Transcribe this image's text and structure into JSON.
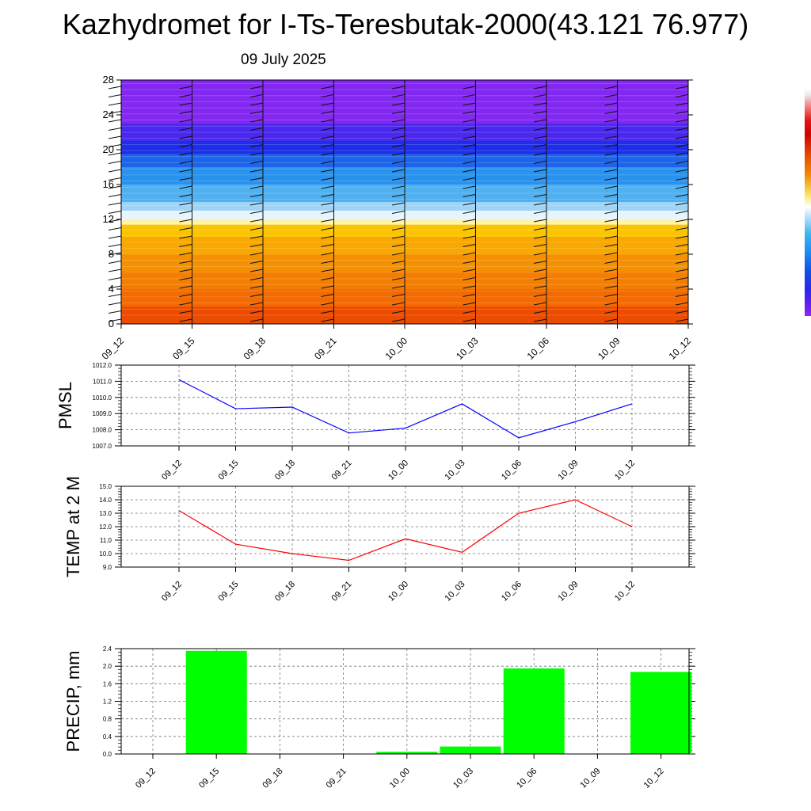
{
  "header": {
    "title": "Kazhydromet for I-Ts-Teresbutak-2000(43.121 76.977)",
    "date": "09 July 2025"
  },
  "chart_data": [
    {
      "type": "heatmap",
      "name": "height-time cross-section",
      "x": [
        "09_12",
        "09_15",
        "09_18",
        "09_21",
        "10_00",
        "10_03",
        "10_06",
        "10_09",
        "10_12"
      ],
      "y_ticks": [
        0,
        4,
        8,
        12,
        16,
        20,
        24,
        28
      ],
      "ylim": [
        0,
        28
      ],
      "colorscale": [
        "#8c28f0",
        "#2828f0",
        "#1e8cf0",
        "#ffffff",
        "#fbe66e",
        "#f08c00",
        "#e65000",
        "#d40000"
      ],
      "bands": [
        {
          "from": 0,
          "to": 2,
          "color": "#ec4c00"
        },
        {
          "from": 2,
          "to": 4,
          "color": "#f26a00"
        },
        {
          "from": 4,
          "to": 6,
          "color": "#f57e00"
        },
        {
          "from": 6,
          "to": 8,
          "color": "#f59000"
        },
        {
          "from": 8,
          "to": 10,
          "color": "#f8a800"
        },
        {
          "from": 10,
          "to": 11.4,
          "color": "#fbc400"
        },
        {
          "from": 11.4,
          "to": 12,
          "color": "#fff3a8"
        },
        {
          "from": 12,
          "to": 13,
          "color": "#e8f4fb"
        },
        {
          "from": 13,
          "to": 14,
          "color": "#a0d4f6"
        },
        {
          "from": 14,
          "to": 16,
          "color": "#50b0f0"
        },
        {
          "from": 16,
          "to": 18,
          "color": "#2892ee"
        },
        {
          "from": 18,
          "to": 19.5,
          "color": "#1c64ea"
        },
        {
          "from": 19.5,
          "to": 21,
          "color": "#1e2ee8"
        },
        {
          "from": 21,
          "to": 23,
          "color": "#4a28ef"
        },
        {
          "from": 23,
          "to": 28,
          "color": "#8228f0"
        }
      ],
      "wind_barbs": true
    },
    {
      "type": "line",
      "name": "PMSL",
      "ylabel": "PMSL",
      "categories": [
        "09_12",
        "09_15",
        "09_18",
        "09_21",
        "10_00",
        "10_03",
        "10_06",
        "10_09",
        "10_12"
      ],
      "values": [
        1011.1,
        1009.3,
        1009.4,
        1007.8,
        1008.1,
        1009.6,
        1007.5,
        1008.5,
        1009.6
      ],
      "ylim": [
        1007.0,
        1012.0
      ],
      "y_ticks": [
        "1007.0",
        "1008.0",
        "1009.0",
        "1010.0",
        "1011.0",
        "1012.0"
      ],
      "color": "#0000ff",
      "grid": true
    },
    {
      "type": "line",
      "name": "TEMP at 2 M",
      "ylabel": "TEMP at 2 M",
      "categories": [
        "09_12",
        "09_15",
        "09_18",
        "09_21",
        "10_00",
        "10_03",
        "10_06",
        "10_09",
        "10_12"
      ],
      "values": [
        13.2,
        10.7,
        10.0,
        9.5,
        11.1,
        10.1,
        13.0,
        14.0,
        12.0
      ],
      "ylim": [
        9.0,
        15.0
      ],
      "y_ticks": [
        "9.0",
        "10.0",
        "11.0",
        "12.0",
        "13.0",
        "14.0",
        "15.0"
      ],
      "color": "#ff0000",
      "grid": true
    },
    {
      "type": "bar",
      "name": "PRECIP, mm",
      "ylabel": "PRECIP, mm",
      "categories": [
        "09_12",
        "09_15",
        "09_18",
        "09_21",
        "10_00",
        "10_03",
        "10_06",
        "10_09",
        "10_12"
      ],
      "values": [
        0.0,
        2.35,
        0.0,
        0.0,
        0.05,
        0.17,
        1.95,
        0.0,
        1.87
      ],
      "ylim": [
        0.0,
        2.4
      ],
      "y_ticks": [
        "0.0",
        "0.4",
        "0.8",
        "1.2",
        "1.6",
        "2.0",
        "2.4"
      ],
      "color": "#00ff00",
      "grid": true
    }
  ]
}
